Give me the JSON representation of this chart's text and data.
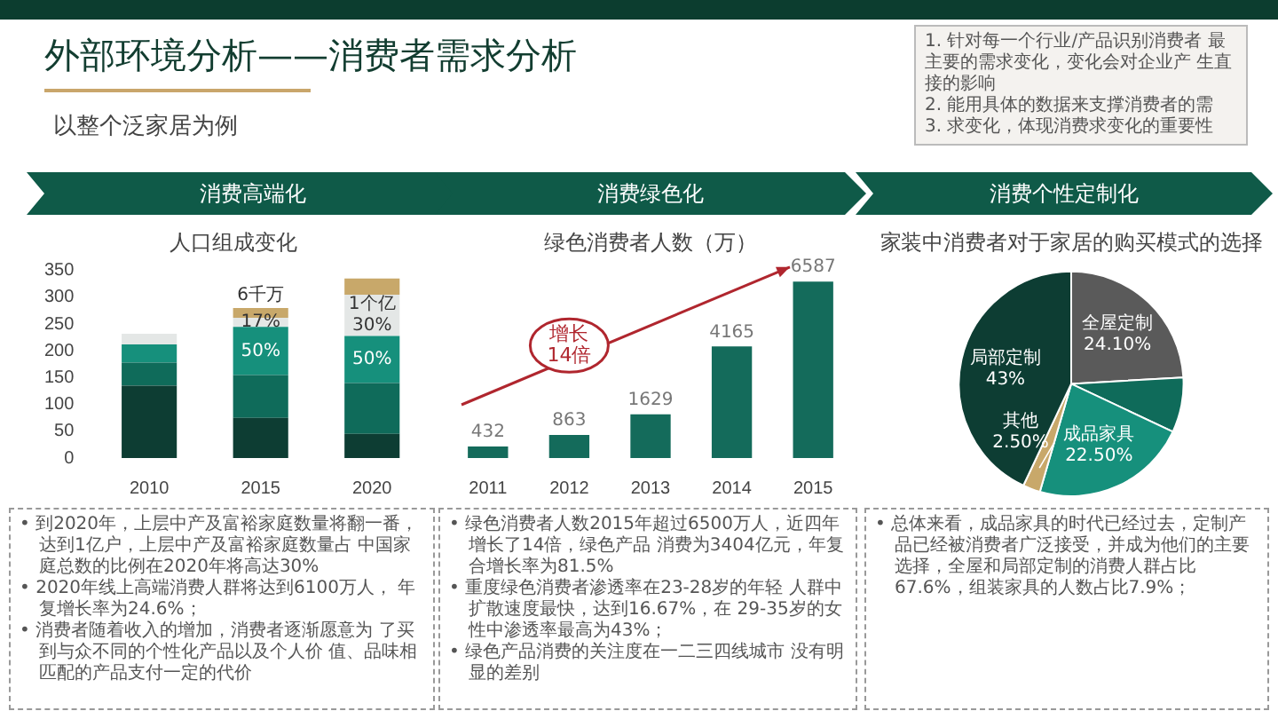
{
  "chart_data": [
    {
      "type": "bar",
      "title": "人口组成变化",
      "subtitle": "消费高端化",
      "categories": [
        "2010",
        "2015",
        "2020"
      ],
      "stacked": true,
      "ylim": [
        0,
        350
      ],
      "yticks": [
        0,
        50,
        100,
        150,
        200,
        250,
        300,
        350
      ],
      "grid": false,
      "series": [
        {
          "color": "#0d3d33",
          "values": [
            135,
            75,
            45
          ]
        },
        {
          "color": "#0f6b5a",
          "values": [
            43,
            80,
            95
          ]
        },
        {
          "color": "#16907c",
          "values": [
            34,
            90,
            88
          ]
        },
        {
          "color": "#e4e7e6",
          "values": [
            20,
            17,
            77
          ]
        },
        {
          "color": "#c8a86a",
          "values": [
            null,
            18,
            30
          ]
        }
      ],
      "annotations": [
        {
          "text": "50%",
          "x": "2015",
          "y": 245
        },
        {
          "text": "50%",
          "x": "2020",
          "y": 228
        },
        {
          "text": "6千万",
          "x": "2015",
          "y": 280
        },
        {
          "text": "17%",
          "x": "2015",
          "y": 262
        },
        {
          "text": "1个亿",
          "x": "2020",
          "y": 305
        },
        {
          "text": "30%",
          "x": "2020",
          "y": 305
        },
        "• 到2020年，上层中产及富裕家庭数量将翻一番，达到1亿户，上层中产及富裕家庭数量占 中国家庭总数的比例在2020年将高达30%",
        "• 2020年线上高端消费人群将达到6100万人， 年复增长率为24.6%；",
        "• 消费者随着收入的增加，消费者逐渐愿意为 了买到与众不同的个性化产品以及个人价 值、品味相匹配的产品支付一定的代价"
      ]
    },
    {
      "type": "bar",
      "title": "绿色消费者人数（万）",
      "subtitle": "消费绿色化",
      "categories": [
        "2011",
        "2012",
        "2013",
        "2014",
        "2015"
      ],
      "values": [
        432,
        863,
        1629,
        4165,
        6587
      ],
      "color": "#146b5b",
      "data_labels": true,
      "tick_labels": "x",
      "grid": false,
      "annotations": [
        {
          "text": "增长\n14倍",
          "x": "2012",
          "y": 4200
        },
        "• 绿色消费者人数2015年超过6500万人，近四年增长了14倍，绿色产品 消费为3404亿元，年复合增长率为81.5%",
        "• 重度绿色消费者渗透率在23-28岁的年轻 人群中扩散速度最快，达到16.67%，在 29-35岁的女性中渗透率最高为43%；",
        "• 绿色产品消费的关注度在一二三四线城市 没有明显的差别"
      ]
    },
    {
      "type": "pie",
      "title": "家装中消费者对于家居的购买模式的选择",
      "subtitle": "消费个性定制化",
      "categories": [
        "全屋定制",
        null,
        "成品家具",
        "其他",
        "局部定制"
      ],
      "values": [
        24.1,
        7.9,
        22.5,
        2.5,
        43
      ],
      "value_labels": [
        "24.10%",
        null,
        "22.50%",
        "2.50%",
        "43%"
      ],
      "colors": [
        "#5a5a5a",
        "#0f6b5a",
        "#16907c",
        "#c8a86a",
        "#0d3d33"
      ],
      "annotations": [
        "• 总体来看，成品家具的时代已经过去，定制产品已经被消费者广泛接受，并成为他们的主要选择，全屋和局部定制的消费人群占比67.6%，组装家具的人数占比7.9%；"
      ]
    },
    {
      "type": "other",
      "title": "外部环境分析——消费者需求分析",
      "subtitle": "以整个泛家居为例",
      "annotations": [
        "1. 针对每一个行业/产品识别消费者 最主要的需求变化，变化会对企业产 生直接的影响",
        "2. 能用具体的数据来支撑消费者的需",
        "3. 求变化，体现消费求变化的重要性"
      ]
    }
  ]
}
